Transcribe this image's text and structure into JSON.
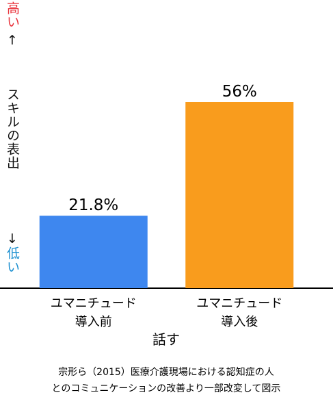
{
  "chart_data": {
    "type": "bar",
    "categories": [
      "ユマニチュード\n導入前",
      "ユマニチュード\n導入後"
    ],
    "values": [
      21.8,
      56
    ],
    "value_labels": [
      "21.8%",
      "56%"
    ],
    "colors": [
      "#3e87ef",
      "#f99c1d"
    ],
    "y_axis": {
      "high": "高い",
      "up": "↑",
      "label": "スキルの表出",
      "down": "↓",
      "low": "低い"
    },
    "x_label": "話す",
    "caption": [
      "宗形ら（2015）医療介護現場における認知症の人",
      "とのコミュニケーションの改善より一部改変して図示"
    ]
  }
}
